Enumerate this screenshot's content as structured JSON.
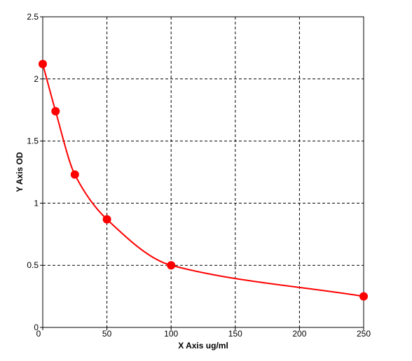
{
  "chart_data": {
    "type": "scatter",
    "x_label": "X Axis ug/ml",
    "y_label": "Y Axis OD",
    "x": [
      0,
      10,
      25,
      50,
      100,
      250
    ],
    "values": [
      2.12,
      1.74,
      1.23,
      0.87,
      0.5,
      0.25
    ],
    "color": "#ff0000",
    "smooth": true,
    "grid": true,
    "xlim": [
      0,
      250
    ],
    "ylim": [
      0,
      2.5
    ],
    "xticks": [
      0,
      50,
      100,
      150,
      200,
      250
    ],
    "yticks": [
      0,
      0.5,
      1,
      1.5,
      2,
      2.5
    ]
  }
}
